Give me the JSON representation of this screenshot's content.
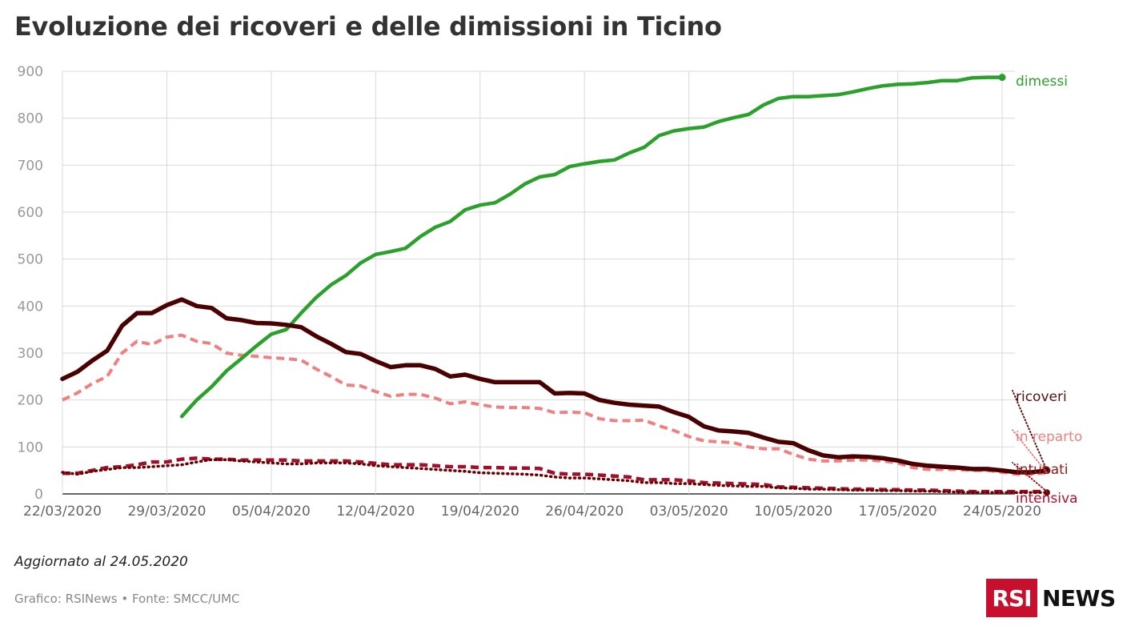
{
  "header": {
    "title": "Evoluzione dei ricoveri e delle dimissioni in Ticino"
  },
  "footer": {
    "updated": "Aggiornato al 24.05.2020",
    "source": "Grafico: RSINews • Fonte: SMCC/UMC"
  },
  "brand": {
    "logo_box": "RSI",
    "logo_text": "NEWS",
    "color": "#c8102e"
  },
  "chart_data": {
    "type": "line",
    "title": "Evoluzione dei ricoveri e delle dimissioni in Ticino",
    "xlabel": "",
    "ylabel": "",
    "ylim": [
      0,
      900
    ],
    "yticks": [
      0,
      100,
      200,
      300,
      400,
      500,
      600,
      700,
      800,
      900
    ],
    "grid": true,
    "x_start": "22/03/2020",
    "x_end": "24/05/2020",
    "xtick_labels": [
      "22/03/2020",
      "29/03/2020",
      "05/04/2020",
      "12/04/2020",
      "19/04/2020",
      "26/04/2020",
      "03/05/2020",
      "10/05/2020",
      "17/05/2020",
      "24/05/2020"
    ],
    "series": [
      {
        "name": "dimessi",
        "color": "#2ca02c",
        "style": "solid",
        "start": "30/03/2020",
        "values": [
          165,
          200,
          228,
          262,
          288,
          315,
          340,
          350,
          385,
          418,
          445,
          465,
          492,
          510,
          516,
          523,
          548,
          568,
          580,
          605,
          615,
          620,
          638,
          660,
          675,
          680,
          697,
          703,
          708,
          711,
          726,
          738,
          763,
          773,
          778,
          781,
          793,
          801,
          808,
          828,
          842,
          846,
          846,
          848,
          850,
          856,
          863,
          869,
          872,
          873,
          876,
          880,
          880,
          886,
          887,
          887
        ]
      },
      {
        "name": "ricoveri",
        "color": "#4a0000",
        "style": "solid",
        "start": "22/03/2020",
        "values": [
          245,
          260,
          284,
          305,
          358,
          385,
          385,
          402,
          414,
          400,
          396,
          374,
          370,
          364,
          363,
          360,
          355,
          336,
          320,
          302,
          298,
          283,
          270,
          274,
          274,
          266,
          250,
          254,
          245,
          238,
          238,
          238,
          238,
          214,
          215,
          214,
          200,
          194,
          190,
          188,
          186,
          174,
          164,
          144,
          135,
          133,
          130,
          120,
          111,
          108,
          93,
          82,
          78,
          80,
          79,
          76,
          71,
          64,
          60,
          58,
          56,
          53,
          53,
          50,
          46,
          46,
          50
        ]
      },
      {
        "name": "in reparto",
        "color": "#f08080",
        "style": "dashed",
        "start": "22/03/2020",
        "values": [
          200,
          215,
          235,
          250,
          300,
          325,
          318,
          334,
          338,
          325,
          320,
          300,
          295,
          293,
          290,
          288,
          285,
          266,
          250,
          232,
          230,
          218,
          208,
          212,
          212,
          204,
          192,
          196,
          190,
          185,
          184,
          184,
          182,
          173,
          174,
          173,
          160,
          156,
          156,
          157,
          145,
          135,
          122,
          113,
          111,
          109,
          100,
          96,
          96,
          84,
          74,
          70,
          70,
          72,
          72,
          70,
          66,
          56,
          52,
          52,
          52,
          50,
          50,
          46,
          42,
          42,
          45
        ]
      },
      {
        "name": "intubati",
        "color": "#a0102a",
        "style": "dashed",
        "start": "22/03/2020",
        "values": [
          44,
          44,
          50,
          56,
          58,
          62,
          68,
          68,
          74,
          76,
          74,
          74,
          72,
          72,
          72,
          72,
          70,
          70,
          70,
          70,
          68,
          65,
          62,
          62,
          62,
          60,
          58,
          58,
          56,
          56,
          55,
          55,
          54,
          44,
          42,
          42,
          40,
          38,
          36,
          30,
          30,
          30,
          28,
          24,
          23,
          22,
          21,
          20,
          15,
          14,
          13,
          12,
          11,
          10,
          10,
          9,
          9,
          8,
          8,
          7,
          6,
          5,
          5,
          5,
          5,
          5,
          5
        ]
      },
      {
        "name": "intensiva",
        "color": "#6b0000",
        "style": "dotted",
        "start": "22/03/2020",
        "values": [
          46,
          42,
          48,
          52,
          56,
          56,
          58,
          60,
          62,
          68,
          73,
          73,
          70,
          68,
          66,
          64,
          64,
          66,
          66,
          66,
          64,
          60,
          58,
          56,
          54,
          52,
          50,
          48,
          45,
          44,
          43,
          42,
          40,
          36,
          34,
          34,
          32,
          30,
          28,
          24,
          24,
          22,
          22,
          20,
          18,
          17,
          16,
          16,
          13,
          12,
          10,
          10,
          9,
          8,
          8,
          7,
          7,
          6,
          6,
          5,
          4,
          3,
          3,
          3,
          3,
          3,
          3
        ]
      }
    ]
  }
}
